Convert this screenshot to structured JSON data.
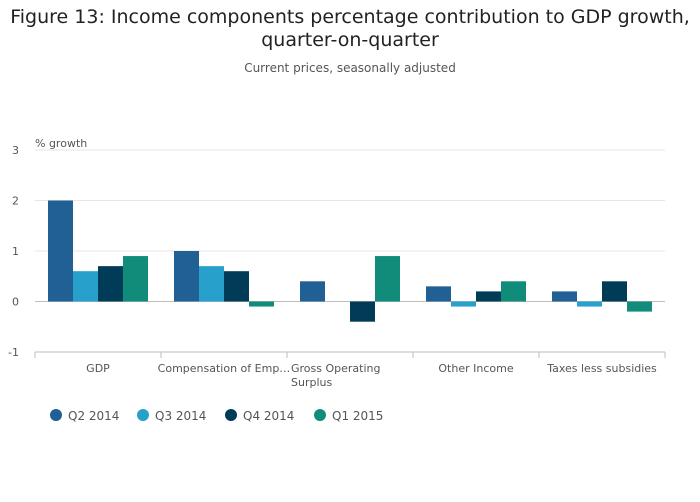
{
  "chart_data": {
    "type": "bar",
    "title": "Figure 13: Income components percentage contribution to GDP growth, quarter-on-quarter",
    "title_lines": [
      "Figure 13: Income components percentage contribution to GDP growth,",
      "quarter-on-quarter"
    ],
    "subtitle": "Current prices, seasonally adjusted",
    "ylabel": "% growth",
    "xlabel": "",
    "ylim": [
      -1,
      3
    ],
    "yticks": [
      "3",
      "2",
      "1",
      "0",
      "-1"
    ],
    "ytick_values": [
      3,
      2,
      1,
      0,
      -1
    ],
    "categories": [
      "GDP",
      "Compensation of Emp…",
      "Gross Operating Surplus",
      "Other Income",
      "Taxes less subsidies"
    ],
    "category_lines": [
      [
        "GDP"
      ],
      [
        "Compensation of Emp…"
      ],
      [
        "Gross Operating",
        "Surplus"
      ],
      [
        "Other Income"
      ],
      [
        "Taxes less subsidies"
      ]
    ],
    "series": [
      {
        "name": "Q2 2014",
        "color": "#206095",
        "values": [
          2.0,
          1.0,
          0.4,
          0.3,
          0.2
        ]
      },
      {
        "name": "Q3 2014",
        "color": "#27a0cc",
        "values": [
          0.6,
          0.7,
          0.0,
          -0.1,
          -0.1
        ]
      },
      {
        "name": "Q4 2014",
        "color": "#003c57",
        "values": [
          0.7,
          0.6,
          -0.4,
          0.2,
          0.4
        ]
      },
      {
        "name": "Q1 2015",
        "color": "#118c7b",
        "values": [
          0.9,
          -0.1,
          0.9,
          0.4,
          -0.2
        ]
      }
    ],
    "grid": true,
    "legend_position": "bottom-left"
  }
}
